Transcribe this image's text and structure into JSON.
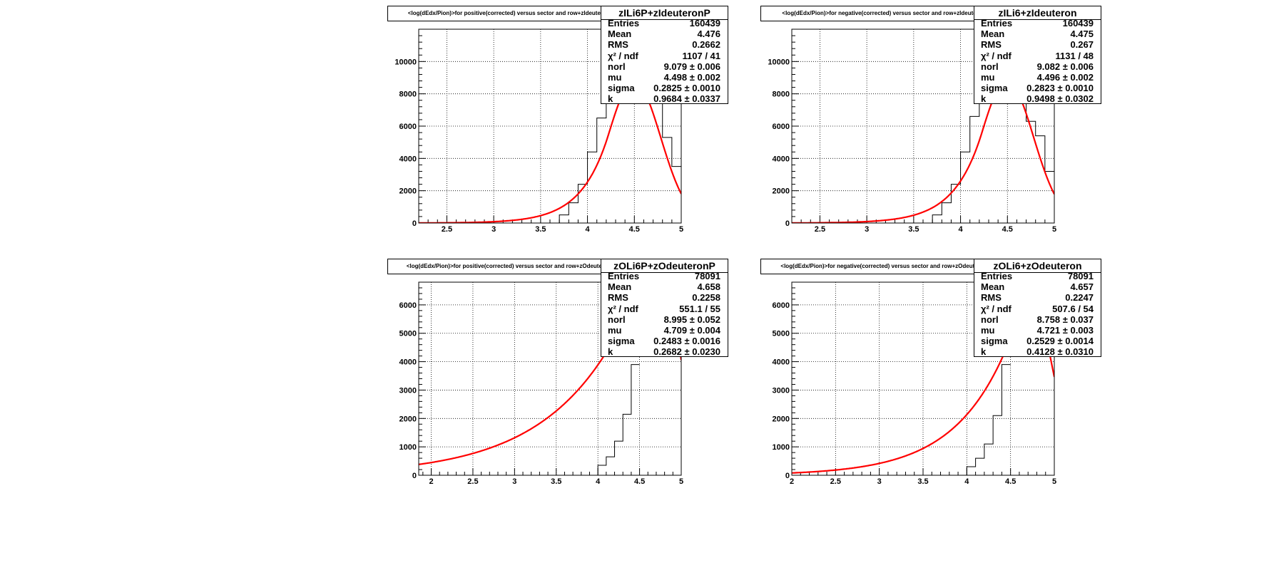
{
  "colors": {
    "fit": "#ff0000",
    "hist": "#000000",
    "grid": "#000000"
  },
  "chart_data": [
    {
      "type": "line",
      "title": "<log(dEdx/Pion)>for positive(corrected) versus sector and row+zIdeuteronP",
      "stats_name": "zILi6P+zIdeuteronP",
      "xlim": [
        2.2,
        5.0
      ],
      "ylim": [
        0,
        12000
      ],
      "xticks": [
        2.5,
        3,
        3.5,
        4,
        4.5,
        5
      ],
      "xtick_labels": [
        "2.5",
        "3",
        "3.5",
        "4",
        "4.5",
        "5"
      ],
      "yticks": [
        0,
        2000,
        4000,
        6000,
        8000,
        10000
      ],
      "ytick_labels": [
        "0",
        "2000",
        "4000",
        "6000",
        "8000",
        "10000"
      ],
      "fit": {
        "norl": 9.079,
        "mu": 4.498,
        "sigma": 0.2825,
        "k": 0.9684
      },
      "hist_visible": {
        "x": [
          3.75,
          3.85,
          3.95,
          4.05,
          4.15,
          4.25,
          4.75,
          4.85,
          4.95
        ],
        "y": [
          500,
          1250,
          2400,
          4400,
          6500,
          9000,
          7600,
          5300,
          3500
        ]
      },
      "stats": [
        {
          "label": "Entries",
          "value": "160439"
        },
        {
          "label": "Mean",
          "value": "4.476"
        },
        {
          "label": "RMS",
          "value": "0.2662"
        },
        {
          "label": "χ² / ndf",
          "value": "1107 / 41"
        },
        {
          "label": "norl",
          "value": "9.079 ± 0.006"
        },
        {
          "label": "mu",
          "value": "4.498 ± 0.002"
        },
        {
          "label": "sigma",
          "value": "0.2825 ± 0.0010"
        },
        {
          "label": "k",
          "value": "0.9684 ± 0.0337"
        }
      ]
    },
    {
      "type": "line",
      "title": "<log(dEdx/Pion)>for negative(corrected) versus sector and row+zIdeuteron",
      "stats_name": "zILi6+zIdeuteron",
      "xlim": [
        2.2,
        5.0
      ],
      "ylim": [
        0,
        12000
      ],
      "xticks": [
        2.5,
        3,
        3.5,
        4,
        4.5,
        5
      ],
      "xtick_labels": [
        "2.5",
        "3",
        "3.5",
        "4",
        "4.5",
        "5"
      ],
      "yticks": [
        0,
        2000,
        4000,
        6000,
        8000,
        10000
      ],
      "ytick_labels": [
        "0",
        "2000",
        "4000",
        "6000",
        "8000",
        "10000"
      ],
      "fit": {
        "norl": 9.082,
        "mu": 4.496,
        "sigma": 0.2823,
        "k": 0.9498
      },
      "hist_visible": {
        "x": [
          3.75,
          3.85,
          3.95,
          4.05,
          4.15,
          4.25,
          4.75,
          4.85,
          4.95
        ],
        "y": [
          500,
          1250,
          2400,
          4400,
          6600,
          9000,
          6300,
          5400,
          3200
        ]
      },
      "stats": [
        {
          "label": "Entries",
          "value": "160439"
        },
        {
          "label": "Mean",
          "value": "4.475"
        },
        {
          "label": "RMS",
          "value": "0.267"
        },
        {
          "label": "χ² / ndf",
          "value": "1131 / 48"
        },
        {
          "label": "norl",
          "value": "9.082 ± 0.006"
        },
        {
          "label": "mu",
          "value": "4.496 ± 0.002"
        },
        {
          "label": "sigma",
          "value": "0.2823 ± 0.0010"
        },
        {
          "label": "k",
          "value": "0.9498 ± 0.0302"
        }
      ]
    },
    {
      "type": "line",
      "title": "<log(dEdx/Pion)>for positive(corrected) versus sector and row+zOdeuteronP",
      "stats_name": "zOLi6P+zOdeuteronP",
      "xlim": [
        1.85,
        5.0
      ],
      "ylim": [
        0,
        6800
      ],
      "xticks": [
        2,
        2.5,
        3,
        3.5,
        4,
        4.5,
        5
      ],
      "xtick_labels": [
        "2",
        "2.5",
        "3",
        "3.5",
        "4",
        "4.5",
        "5"
      ],
      "yticks": [
        0,
        1000,
        2000,
        3000,
        4000,
        5000,
        6000
      ],
      "ytick_labels": [
        "0",
        "1000",
        "2000",
        "3000",
        "4000",
        "5000",
        "6000"
      ],
      "fit": {
        "norl": 8.995,
        "mu": 4.709,
        "sigma": 0.2483,
        "k": 0.2682
      },
      "hist_visible": {
        "x": [
          4.05,
          4.15,
          4.25,
          4.35,
          4.45
        ],
        "y": [
          350,
          650,
          1200,
          2150,
          3900
        ]
      },
      "stats": [
        {
          "label": "Entries",
          "value": "78091"
        },
        {
          "label": "Mean",
          "value": "4.658"
        },
        {
          "label": "RMS",
          "value": "0.2258"
        },
        {
          "label": "χ² / ndf",
          "value": "551.1 / 55"
        },
        {
          "label": "norl",
          "value": "8.995 ± 0.052"
        },
        {
          "label": "mu",
          "value": "4.709 ± 0.004"
        },
        {
          "label": "sigma",
          "value": "0.2483 ± 0.0016"
        },
        {
          "label": "k",
          "value": "0.2682 ± 0.0230"
        }
      ]
    },
    {
      "type": "line",
      "title": "<log(dEdx/Pion)>for negative(corrected) versus sector and row+zOdeuteron",
      "stats_name": "zOLi6+zOdeuteron",
      "xlim": [
        2.0,
        5.0
      ],
      "ylim": [
        0,
        6800
      ],
      "xticks": [
        2,
        2.5,
        3,
        3.5,
        4,
        4.5,
        5
      ],
      "xtick_labels": [
        "2",
        "2.5",
        "3",
        "3.5",
        "4",
        "4.5",
        "5"
      ],
      "yticks": [
        0,
        1000,
        2000,
        3000,
        4000,
        5000,
        6000
      ],
      "ytick_labels": [
        "0",
        "1000",
        "2000",
        "3000",
        "4000",
        "5000",
        "6000"
      ],
      "fit": {
        "norl": 8.758,
        "mu": 4.721,
        "sigma": 0.2529,
        "k": 0.4128
      },
      "hist_visible": {
        "x": [
          4.05,
          4.15,
          4.25,
          4.35,
          4.45
        ],
        "y": [
          300,
          600,
          1100,
          2100,
          3900
        ]
      },
      "stats": [
        {
          "label": "Entries",
          "value": "78091"
        },
        {
          "label": "Mean",
          "value": "4.657"
        },
        {
          "label": "RMS",
          "value": "0.2247"
        },
        {
          "label": "χ² / ndf",
          "value": "507.6 / 54"
        },
        {
          "label": "norl",
          "value": "8.758 ± 0.037"
        },
        {
          "label": "mu",
          "value": "4.721 ± 0.003"
        },
        {
          "label": "sigma",
          "value": "0.2529 ± 0.0014"
        },
        {
          "label": "k",
          "value": "0.4128 ± 0.0310"
        }
      ]
    }
  ]
}
